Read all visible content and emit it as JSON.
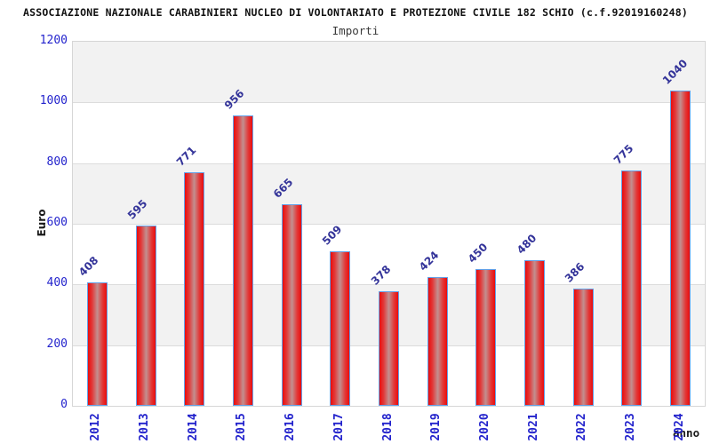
{
  "header": {
    "title": "ASSOCIAZIONE NAZIONALE CARABINIERI NUCLEO DI VOLONTARIATO E PROTEZIONE CIVILE 182 SCHIO (c.f.92019160248)",
    "subtitle": "Importi"
  },
  "chart_data": {
    "type": "bar",
    "title": "Importi",
    "categories": [
      "2012",
      "2013",
      "2014",
      "2015",
      "2016",
      "2017",
      "2018",
      "2019",
      "2020",
      "2021",
      "2022",
      "2023",
      "2024"
    ],
    "values": [
      408,
      595,
      771,
      956,
      665,
      509,
      378,
      424,
      450,
      480,
      386,
      775,
      1040
    ],
    "xlabel": "anno",
    "ylabel": "Euro",
    "ylim": [
      0,
      1200
    ],
    "y_ticks": [
      0,
      200,
      400,
      600,
      800,
      1000,
      1200
    ],
    "legend": "none",
    "grid": "horizontal-bands-alternating",
    "colors": {
      "bar_fill_edge": "#ea0c0c",
      "bar_fill_center": "#c29090",
      "bar_border": "#63a1e8",
      "axis_tick_color": "#2222cc",
      "value_label_color": "#333399",
      "band_gray": "#f2f2f2",
      "band_white": "#ffffff",
      "plot_border": "#d6d6d6",
      "title_color": "#111111",
      "subtitle_color": "#3a3a3a"
    }
  }
}
